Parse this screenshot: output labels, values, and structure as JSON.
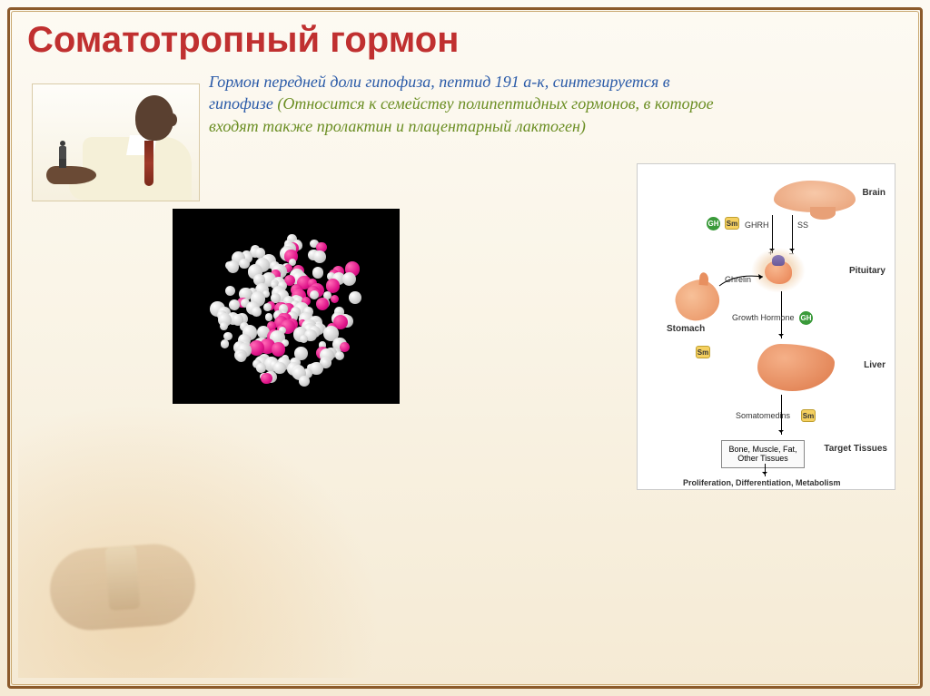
{
  "title": "Соматотропный гормон",
  "body": {
    "line1": "Гормон передней доли гипофиза, пептид 191 а-к, синтезируется в гипофизе ",
    "line2a": "(Относится к семейству полипептидных гормонов, в которое входят также пролактин и плацентарный лактоген)",
    "colors": {
      "blue": "#2a5aa8",
      "green": "#6b8e23"
    }
  },
  "diagram": {
    "labels": {
      "brain": "Brain",
      "pituitary": "Pituitary",
      "stomach": "Stomach",
      "liver": "Liver",
      "target": "Target Tissues",
      "ghrh": "GHRH",
      "ss": "SS",
      "ghrelin": "Ghrelin",
      "gh": "Growth Hormone",
      "somatomedins": "Somatomedins",
      "tissue_box": "Bone, Muscle, Fat, Other Tissues",
      "bottom": "Proliferation, Differentiation, Metabolism",
      "plus": "+",
      "minus": "–"
    },
    "badges": {
      "gh": "GH",
      "sm": "Sm"
    }
  },
  "molecule": {
    "atom_colors": {
      "white": "#ffffff",
      "pink": "#e0148a"
    },
    "background": "#000000"
  }
}
